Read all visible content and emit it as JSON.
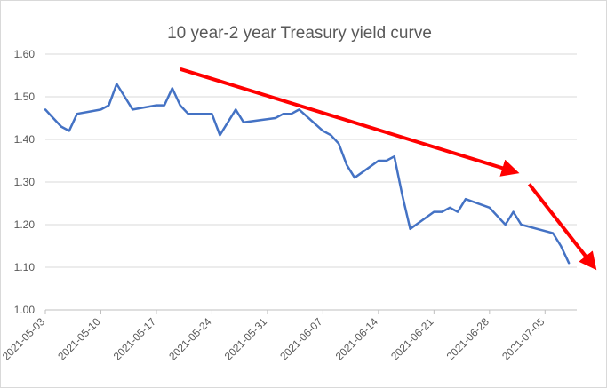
{
  "chart_data": {
    "type": "line",
    "title": "10 year-2 year Treasury yield curve",
    "xlabel": "",
    "ylabel": "",
    "ylim": [
      1.0,
      1.6
    ],
    "yticks": [
      "1.00",
      "1.10",
      "1.20",
      "1.30",
      "1.40",
      "1.50",
      "1.60"
    ],
    "xticks": [
      "2021-05-03",
      "2021-05-10",
      "2021-05-17",
      "2021-05-24",
      "2021-05-31",
      "2021-06-07",
      "2021-06-14",
      "2021-06-21",
      "2021-06-28",
      "2021-07-05"
    ],
    "x_range": [
      "2021-05-03",
      "2021-07-09"
    ],
    "grid": "horizontal",
    "legend": "none",
    "series_color": "#4472c4",
    "arrow_color": "#ff0000",
    "series": [
      {
        "x": [
          "2021-05-03",
          "2021-05-04",
          "2021-05-05",
          "2021-05-06",
          "2021-05-07",
          "2021-05-10",
          "2021-05-11",
          "2021-05-12",
          "2021-05-13",
          "2021-05-14",
          "2021-05-17",
          "2021-05-18",
          "2021-05-19",
          "2021-05-20",
          "2021-05-21",
          "2021-05-24",
          "2021-05-25",
          "2021-05-26",
          "2021-05-27",
          "2021-05-28",
          "2021-06-01",
          "2021-06-02",
          "2021-06-03",
          "2021-06-04",
          "2021-06-07",
          "2021-06-08",
          "2021-06-09",
          "2021-06-10",
          "2021-06-11",
          "2021-06-14",
          "2021-06-15",
          "2021-06-16",
          "2021-06-17",
          "2021-06-18",
          "2021-06-21",
          "2021-06-22",
          "2021-06-23",
          "2021-06-24",
          "2021-06-25",
          "2021-06-28",
          "2021-06-29",
          "2021-06-30",
          "2021-07-01",
          "2021-07-02",
          "2021-07-06",
          "2021-07-07",
          "2021-07-08"
        ],
        "values": [
          1.47,
          1.45,
          1.43,
          1.42,
          1.46,
          1.47,
          1.48,
          1.53,
          1.5,
          1.47,
          1.48,
          1.48,
          1.52,
          1.48,
          1.46,
          1.46,
          1.41,
          1.44,
          1.47,
          1.44,
          1.45,
          1.46,
          1.46,
          1.47,
          1.42,
          1.41,
          1.39,
          1.34,
          1.31,
          1.35,
          1.35,
          1.36,
          1.27,
          1.19,
          1.23,
          1.23,
          1.24,
          1.23,
          1.26,
          1.24,
          1.22,
          1.2,
          1.23,
          1.2,
          1.18,
          1.15,
          1.11
        ]
      }
    ],
    "annotations": [
      {
        "type": "arrow",
        "from": [
          "2021-05-20",
          1.565
        ],
        "to": [
          "2021-07-01",
          1.325
        ]
      },
      {
        "type": "arrow",
        "from": [
          "2021-07-03",
          1.295
        ],
        "to": [
          "2021-07-11",
          1.105
        ]
      }
    ]
  }
}
